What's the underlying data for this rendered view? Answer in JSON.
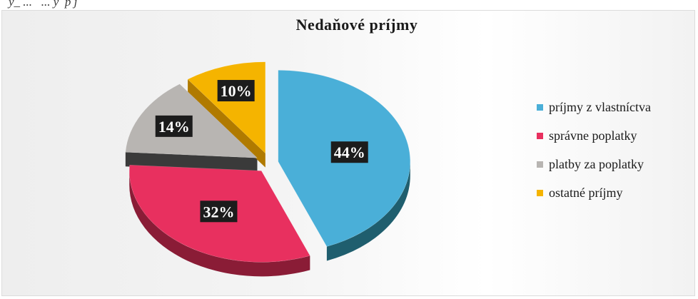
{
  "caption_fragment": "y_ ...   ... y  p j",
  "chart_data": {
    "type": "pie",
    "title": "Nedaňové príjmy",
    "categories": [
      "príjmy z vlastníctva",
      "správne poplatky",
      "platby za poplatky",
      "ostatné príjmy"
    ],
    "values": [
      44,
      32,
      14,
      10
    ],
    "value_labels": [
      "44%",
      "32%",
      "14%",
      "10%"
    ],
    "colors": [
      "#4aafd8",
      "#e8305f",
      "#b8b5b2",
      "#f5b400"
    ],
    "side_colors": [
      "#1f5e6e",
      "#8a1c36",
      "#3a3a3a",
      "#b07a00"
    ],
    "legend_position": "right",
    "style": "3d-exploded"
  }
}
